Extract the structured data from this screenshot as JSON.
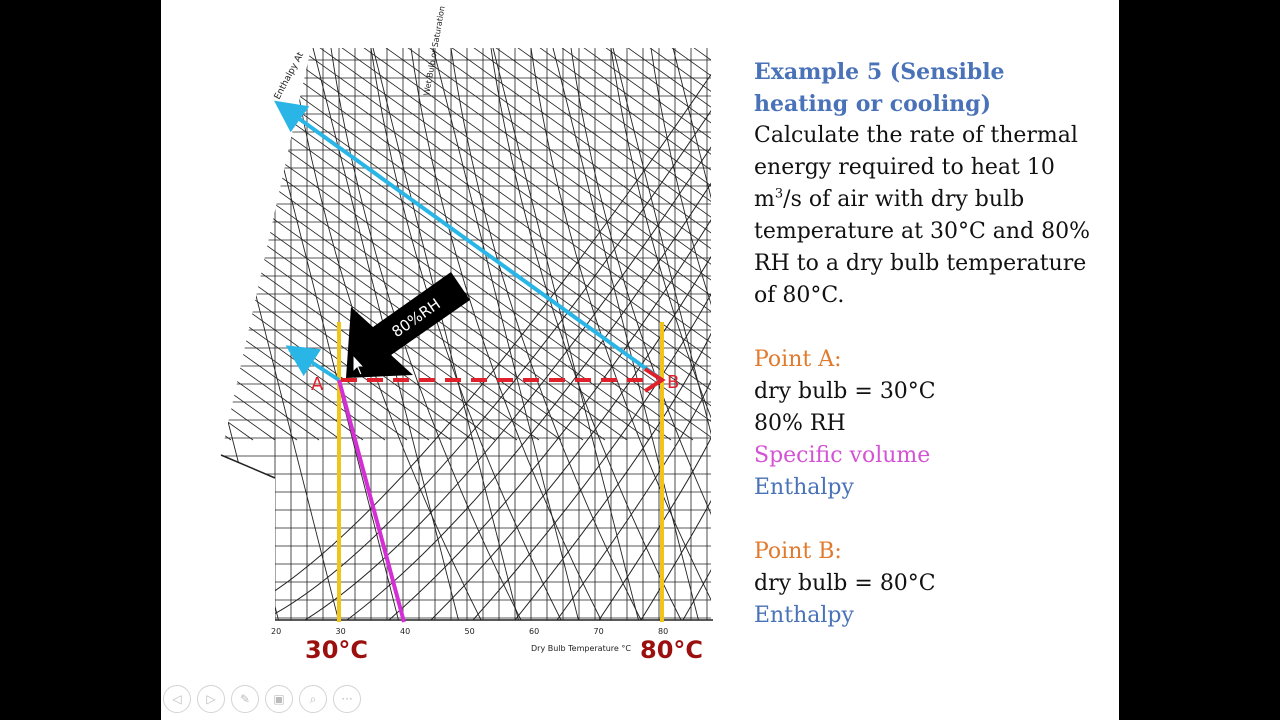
{
  "slide": {
    "title": "Example 5 (Sensible heating or cooling)",
    "problem_part1": "Calculate the rate of thermal energy required to heat 10 m",
    "problem_sup": "3",
    "problem_part2": "/s of air with dry bulb temperature at 30°C and 80% RH to a dry bulb temperature of 80°C.",
    "point_a": {
      "heading": "Point A:",
      "dry_bulb": "dry bulb = 30°C",
      "rh": "80% RH",
      "specific_volume": "Specific volume",
      "enthalpy": "Enthalpy"
    },
    "point_b": {
      "heading": "Point B:",
      "dry_bulb": "dry bulb = 80°C",
      "enthalpy": "Enthalpy"
    }
  },
  "chart": {
    "label_30c": "30°C",
    "label_80c": "80°C",
    "label_a": "A",
    "label_b": "B",
    "callout": "80%RH",
    "x_axis_label": "Dry Bulb Temperature °C",
    "x_ticks": [
      "20",
      "30",
      "40",
      "50",
      "60",
      "70",
      "80"
    ],
    "enthalpy_label": "Enthalpy At",
    "wet_bulb_label": "Wet Bulb or Saturation",
    "colors": {
      "dry_bulb_lines": "#f0c419",
      "enthalpy_lines": "#29b6e6",
      "process_line": "#e0202a",
      "specific_volume_line": "#d42fd4",
      "temperature_labels": "#9b0f0f"
    }
  },
  "controls": {
    "prev_icon": "◁",
    "next_icon": "▷",
    "pen_icon": "✎",
    "slides_icon": "▣",
    "zoom_icon": "⌕",
    "more_icon": "···"
  }
}
